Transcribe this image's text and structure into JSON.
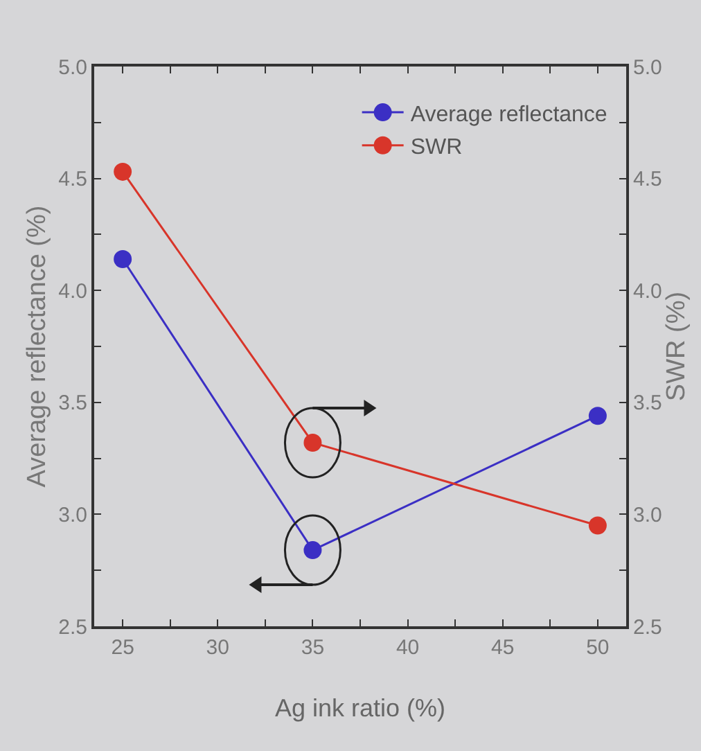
{
  "chart_data": {
    "type": "line",
    "xlabel": "Ag ink ratio (%)",
    "ylabel": "Average reflectance (%)",
    "y2label": "SWR (%)",
    "x": [
      25,
      35,
      50
    ],
    "series": [
      {
        "name": "Average reflectance",
        "color": "#3b2fc4",
        "values": [
          4.14,
          2.84,
          3.44
        ]
      },
      {
        "name": "SWR",
        "color": "#d8352a",
        "values": [
          4.53,
          3.32,
          2.95
        ],
        "axis": "y2"
      }
    ],
    "xlim": [
      23.5,
      51.5
    ],
    "xticks": [
      25,
      {
        "value": 27.5,
        "label": null
      },
      30,
      {
        "value": 32.5,
        "label": null
      },
      35,
      {
        "value": 37.5,
        "label": null
      },
      40,
      {
        "value": 42.5,
        "label": null
      },
      45,
      {
        "value": 47.5,
        "label": null
      },
      50
    ],
    "ylim": [
      2.5,
      5.0
    ],
    "yticks": [
      2.5,
      {
        "value": 2.75,
        "label": null
      },
      {
        "value": 3,
        "label": "3.0"
      },
      {
        "value": 3.25,
        "label": null
      },
      3.5,
      {
        "value": 3.75,
        "label": null
      },
      {
        "value": 4,
        "label": "4.0"
      },
      {
        "value": 4.25,
        "label": null
      },
      4.5,
      {
        "value": 4.75,
        "label": null
      },
      {
        "value": 5,
        "label": "5.0"
      }
    ],
    "y2lim": [
      2.5,
      5.0
    ],
    "y2ticks": [
      2.5,
      {
        "value": 2.75,
        "label": null
      },
      {
        "value": 3,
        "label": "3.0"
      },
      {
        "value": 3.25,
        "label": null
      },
      3.5,
      {
        "value": 3.75,
        "label": null
      },
      {
        "value": 4,
        "label": "4.0"
      },
      {
        "value": 4.25,
        "label": null
      },
      4.5,
      {
        "value": 4.75,
        "label": null
      },
      {
        "value": 5,
        "label": "5.0"
      }
    ],
    "grid": false,
    "legend": "top right",
    "marker": "circle",
    "line_style": "solid"
  }
}
